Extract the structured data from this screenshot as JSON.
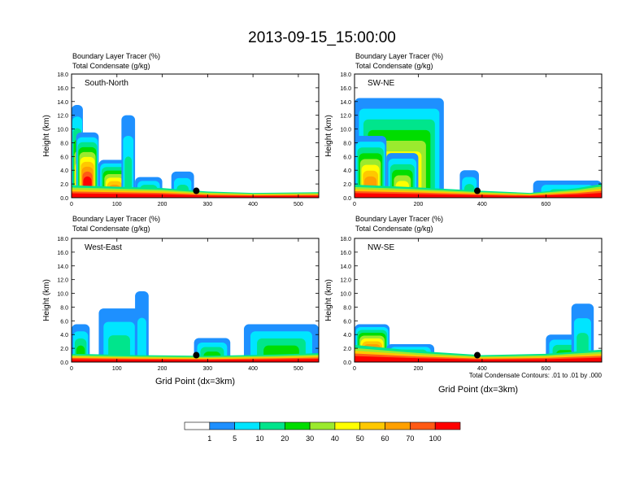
{
  "page": {
    "title": "2013-09-15_15:00:00",
    "contour_note": "Total Condensate Contours: .01 to .01 by .000"
  },
  "colorbar": {
    "labels": [
      "1",
      "5",
      "10",
      "20",
      "30",
      "40",
      "50",
      "60",
      "70",
      "100"
    ],
    "colors": [
      "#ffffff",
      "#1e90ff",
      "#00e5ff",
      "#00e58c",
      "#00dd00",
      "#9bea2e",
      "#ffff00",
      "#ffc800",
      "#ffa000",
      "#ff5a14",
      "#ff0000"
    ]
  },
  "chart_data": [
    {
      "type": "heatmap",
      "panel_label": "South-North",
      "field_label_1": "Boundary Layer Tracer   (%)",
      "field_label_2": "Total Condensate   (g/kg)",
      "ylabel": "Height (km)",
      "xlabel": "",
      "xlim": [
        0,
        545
      ],
      "ylim": [
        0,
        18
      ],
      "xticks": [
        0,
        100,
        200,
        300,
        400,
        500
      ],
      "yticks": [
        "0.0",
        "2.0",
        "4.0",
        "6.0",
        "8.0",
        "10.0",
        "12.0",
        "14.0",
        "16.0",
        "18.0"
      ],
      "marker": {
        "x": 275,
        "y": 1.0
      },
      "boundary_layer_top_km": [
        [
          0,
          1.8
        ],
        [
          100,
          1.6
        ],
        [
          200,
          1.4
        ],
        [
          300,
          0.9
        ],
        [
          400,
          0.7
        ],
        [
          545,
          0.8
        ]
      ],
      "plumes": [
        {
          "x": [
            0,
            25
          ],
          "top_km": 13.5,
          "max_pct": 40
        },
        {
          "x": [
            10,
            60
          ],
          "top_km": 9.5,
          "max_pct": 100
        },
        {
          "x": [
            60,
            130
          ],
          "top_km": 5.5,
          "max_pct": 60
        },
        {
          "x": [
            110,
            140
          ],
          "top_km": 12.0,
          "max_pct": 10
        },
        {
          "x": [
            140,
            200
          ],
          "top_km": 3.0,
          "max_pct": 20
        },
        {
          "x": [
            220,
            270
          ],
          "top_km": 3.8,
          "max_pct": 10
        }
      ]
    },
    {
      "type": "heatmap",
      "panel_label": "SW-NE",
      "field_label_1": "Boundary Layer Tracer   (%)",
      "field_label_2": "Total Condensate   (g/kg)",
      "ylabel": "Height (km)",
      "xlabel": "",
      "xlim": [
        0,
        775
      ],
      "ylim": [
        0,
        18
      ],
      "xticks": [
        0,
        200,
        400,
        600
      ],
      "yticks": [
        "0.0",
        "2.0",
        "4.0",
        "6.0",
        "8.0",
        "10.0",
        "12.0",
        "14.0",
        "16.0",
        "18.0"
      ],
      "marker": {
        "x": 385,
        "y": 1.0
      },
      "boundary_layer_top_km": [
        [
          0,
          1.9
        ],
        [
          200,
          1.5
        ],
        [
          400,
          1.0
        ],
        [
          550,
          0.7
        ],
        [
          700,
          1.4
        ],
        [
          775,
          2.0
        ]
      ],
      "plumes": [
        {
          "x": [
            0,
            280
          ],
          "top_km": 14.5,
          "max_pct": 50
        },
        {
          "x": [
            0,
            100
          ],
          "top_km": 9.0,
          "max_pct": 60
        },
        {
          "x": [
            100,
            200
          ],
          "top_km": 6.5,
          "max_pct": 40
        },
        {
          "x": [
            330,
            390
          ],
          "top_km": 4.0,
          "max_pct": 10
        },
        {
          "x": [
            560,
            775
          ],
          "top_km": 2.5,
          "max_pct": 10
        }
      ]
    },
    {
      "type": "heatmap",
      "panel_label": "West-East",
      "field_label_1": "Boundary Layer Tracer   (%)",
      "field_label_2": "Total Condensate   (g/kg)",
      "ylabel": "Height (km)",
      "xlabel": "Grid Point (dx=3km)",
      "xlim": [
        0,
        545
      ],
      "ylim": [
        0,
        18
      ],
      "xticks": [
        0,
        100,
        200,
        300,
        400,
        500
      ],
      "yticks": [
        "0.0",
        "2.0",
        "4.0",
        "6.0",
        "8.0",
        "10.0",
        "12.0",
        "14.0",
        "16.0",
        "18.0"
      ],
      "marker": {
        "x": 275,
        "y": 1.0
      },
      "boundary_layer_top_km": [
        [
          0,
          1.2
        ],
        [
          150,
          1.0
        ],
        [
          300,
          0.9
        ],
        [
          450,
          1.1
        ],
        [
          545,
          1.3
        ]
      ],
      "plumes": [
        {
          "x": [
            0,
            40
          ],
          "top_km": 5.5,
          "max_pct": 20
        },
        {
          "x": [
            60,
            150
          ],
          "top_km": 7.8,
          "max_pct": 10
        },
        {
          "x": [
            140,
            170
          ],
          "top_km": 10.3,
          "max_pct": 5
        },
        {
          "x": [
            270,
            350
          ],
          "top_km": 3.5,
          "max_pct": 20
        },
        {
          "x": [
            380,
            545
          ],
          "top_km": 5.5,
          "max_pct": 20
        }
      ]
    },
    {
      "type": "heatmap",
      "panel_label": "NW-SE",
      "field_label_1": "Boundary Layer Tracer   (%)",
      "field_label_2": "Total Condensate   (g/kg)",
      "ylabel": "Height (km)",
      "xlabel": "Grid Point (dx=3km)",
      "xlim": [
        0,
        775
      ],
      "ylim": [
        0,
        18
      ],
      "xticks": [
        0,
        200,
        400,
        600
      ],
      "yticks": [
        "0.0",
        "2.0",
        "4.0",
        "6.0",
        "8.0",
        "10.0",
        "12.0",
        "14.0",
        "16.0",
        "18.0"
      ],
      "marker": {
        "x": 385,
        "y": 1.0
      },
      "boundary_layer_top_km": [
        [
          0,
          2.5
        ],
        [
          200,
          1.6
        ],
        [
          400,
          1.0
        ],
        [
          600,
          1.2
        ],
        [
          775,
          1.8
        ]
      ],
      "plumes": [
        {
          "x": [
            0,
            110
          ],
          "top_km": 5.5,
          "max_pct": 100
        },
        {
          "x": [
            100,
            250
          ],
          "top_km": 2.6,
          "max_pct": 30
        },
        {
          "x": [
            600,
            720
          ],
          "top_km": 4.0,
          "max_pct": 20
        },
        {
          "x": [
            680,
            750
          ],
          "top_km": 8.5,
          "max_pct": 10
        }
      ]
    }
  ]
}
